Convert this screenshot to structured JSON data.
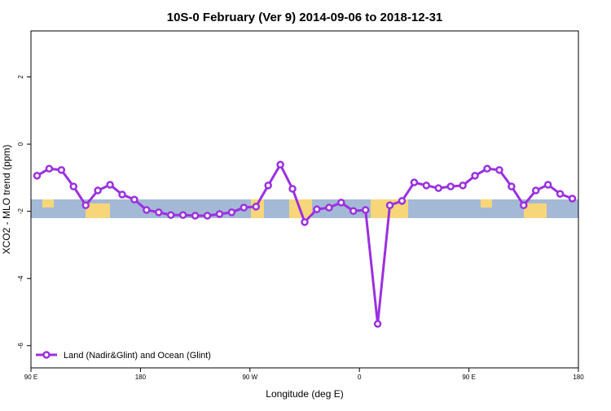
{
  "chart_data": {
    "type": "line",
    "title": "10S-0 February (Ver 9)   2014-09-06 to 2018-12-31",
    "x_label": "Longitude (deg E)",
    "y_label": "XCO2 - MLO trend (ppm)",
    "xlim": [
      90,
      540
    ],
    "xticks": [
      {
        "value": 90,
        "label": "90 E"
      },
      180,
      {
        "value": 270,
        "label": "90 W"
      },
      {
        "value": 360,
        "label": "0"
      },
      {
        "value": 450,
        "label": "90 E"
      },
      {
        "value": 540,
        "label": "180"
      }
    ],
    "ylim": [
      -6.66,
      3.37
    ],
    "yticks": [
      2,
      0,
      -2,
      -4,
      -6
    ],
    "x": [
      95,
      105,
      115,
      125,
      135,
      145,
      155,
      165,
      175,
      185,
      195,
      205,
      215,
      225,
      235,
      245,
      255,
      265,
      275,
      285,
      295,
      305,
      315,
      325,
      335,
      345,
      355,
      365,
      375,
      385,
      395,
      405,
      415,
      425,
      435,
      445,
      455,
      465,
      475,
      485,
      495,
      505,
      515,
      525,
      535
    ],
    "series": [
      {
        "name": "Land (Nadir&Glint) and Ocean (Glint)",
        "color": "#9b30e0",
        "values": [
          -0.94,
          -0.73,
          -0.77,
          -1.26,
          -1.82,
          -1.38,
          -1.21,
          -1.5,
          -1.65,
          -1.96,
          -2.03,
          -2.11,
          -2.11,
          -2.13,
          -2.13,
          -2.08,
          -2.03,
          -1.89,
          -1.86,
          -1.23,
          -0.61,
          -1.33,
          -2.32,
          -1.94,
          -1.89,
          -1.74,
          -1.99,
          -1.96,
          -5.35,
          -1.82,
          -1.69,
          -1.14,
          -1.23,
          -1.31,
          -1.26,
          -1.23,
          -0.94,
          -0.73,
          -0.77,
          -1.26,
          -1.82,
          -1.38,
          -1.21,
          -1.48,
          -1.62
        ]
      }
    ],
    "legend": "bottom-left"
  }
}
